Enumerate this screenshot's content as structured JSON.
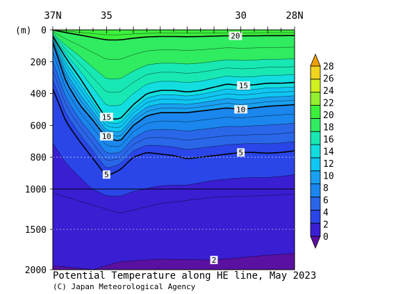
{
  "chart_data": {
    "type": "contour",
    "title": "Potential Temperature along HE line, May 2023",
    "credit": "(C) Japan Meteorological Agency",
    "ylabel_unit": "(m)",
    "x_axis": {
      "left_label": "37N",
      "right_label": "28N",
      "tick_labels": [
        {
          "lat": 37,
          "text": "37N"
        },
        {
          "lat": 35,
          "text": "35"
        },
        {
          "lat": 30,
          "text": "30"
        },
        {
          "lat": 28,
          "text": "28N"
        }
      ],
      "range": [
        37,
        28
      ]
    },
    "y_axis": {
      "tick_labels": [
        "0",
        "200",
        "400",
        "600",
        "800",
        "1000",
        "1500",
        "2000"
      ],
      "depths": [
        0,
        200,
        400,
        600,
        800,
        1000,
        1500,
        2000
      ],
      "upper_range": [
        0,
        1000
      ],
      "lower_range": [
        1000,
        2000
      ],
      "dotted_lines": [
        800,
        1500
      ],
      "solid_line": 1000
    },
    "colorbar": {
      "levels": [
        0,
        2,
        4,
        6,
        8,
        10,
        12,
        14,
        16,
        18,
        20,
        22,
        24,
        26,
        28
      ],
      "labels": [
        "28",
        "26",
        "24",
        "22",
        "20",
        "18",
        "16",
        "14",
        "12",
        "10",
        "8",
        "6",
        "4",
        "2",
        "0"
      ],
      "colors": [
        "#5a10a0",
        "#3a1ed2",
        "#2a46e8",
        "#2a66e8",
        "#1a86ee",
        "#1aa0f0",
        "#10c6f2",
        "#12dee0",
        "#18e8b4",
        "#30ec60",
        "#3cf03c",
        "#92f030",
        "#d2f020",
        "#f0d420",
        "#f0a000"
      ]
    },
    "labeled_contours": [
      {
        "value": 20,
        "text": "20"
      },
      {
        "value": 15,
        "text": "15"
      },
      {
        "value": 10,
        "text": "10"
      },
      {
        "value": 5,
        "text": "5"
      },
      {
        "value": 2,
        "text": "2"
      }
    ],
    "isotherm_depths_m": {
      "lat": [
        37,
        36.5,
        36,
        35.5,
        35,
        34.5,
        34,
        33.5,
        33,
        32.5,
        32,
        31.5,
        31,
        30.5,
        30,
        29.5,
        29,
        28.5,
        28
      ],
      "t15": [
        40,
        180,
        300,
        430,
        560,
        560,
        470,
        400,
        380,
        380,
        390,
        380,
        360,
        340,
        350,
        345,
        335,
        335,
        330
      ],
      "t10": [
        80,
        330,
        470,
        570,
        680,
        700,
        600,
        540,
        520,
        520,
        520,
        510,
        500,
        490,
        500,
        490,
        480,
        475,
        470
      ],
      "t5": [
        370,
        580,
        700,
        810,
        920,
        880,
        800,
        770,
        780,
        790,
        810,
        800,
        790,
        780,
        770,
        770,
        775,
        770,
        760
      ]
    },
    "deep_surfaces": {
      "lat": [
        37,
        35.5,
        34.5,
        33,
        31,
        29,
        28
      ],
      "t3": [
        1050,
        1200,
        1300,
        1180,
        1100,
        1080,
        1060
      ],
      "t2": [
        1950,
        2000,
        1900,
        1870,
        1880,
        1820,
        1800
      ]
    }
  }
}
